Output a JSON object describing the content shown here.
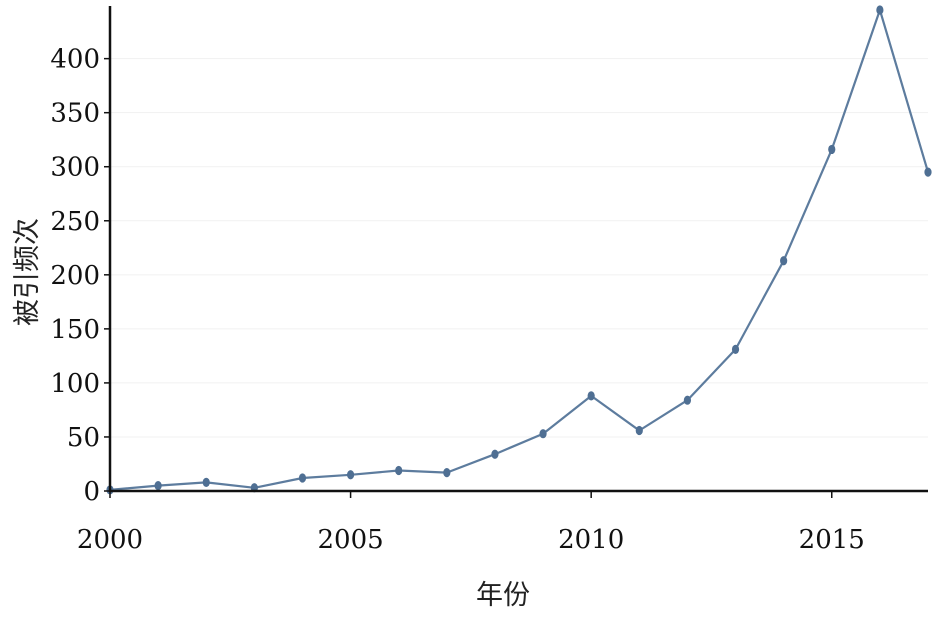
{
  "chart_data": {
    "type": "line",
    "xlabel": "年份",
    "ylabel": "被引频次",
    "xlim": [
      2000,
      2017
    ],
    "ylim": [
      0,
      445
    ],
    "x_ticks": [
      2000,
      2005,
      2010,
      2015
    ],
    "y_ticks": [
      0,
      50,
      100,
      150,
      200,
      250,
      300,
      350,
      400
    ],
    "grid": true,
    "series": [
      {
        "x": [
          2000,
          2001,
          2002,
          2003,
          2004,
          2005,
          2006,
          2007,
          2008,
          2009,
          2010,
          2011,
          2012,
          2013,
          2014,
          2015,
          2016,
          2017
        ],
        "values": [
          1,
          5,
          8,
          3,
          12,
          15,
          19,
          17,
          34,
          53,
          88,
          56,
          84,
          131,
          213,
          316,
          445,
          295
        ]
      }
    ],
    "colors": {
      "line": "#5d7c9e",
      "marker": "#4f6f93",
      "axis": "#111111",
      "grid": "#f1f1f1"
    }
  }
}
